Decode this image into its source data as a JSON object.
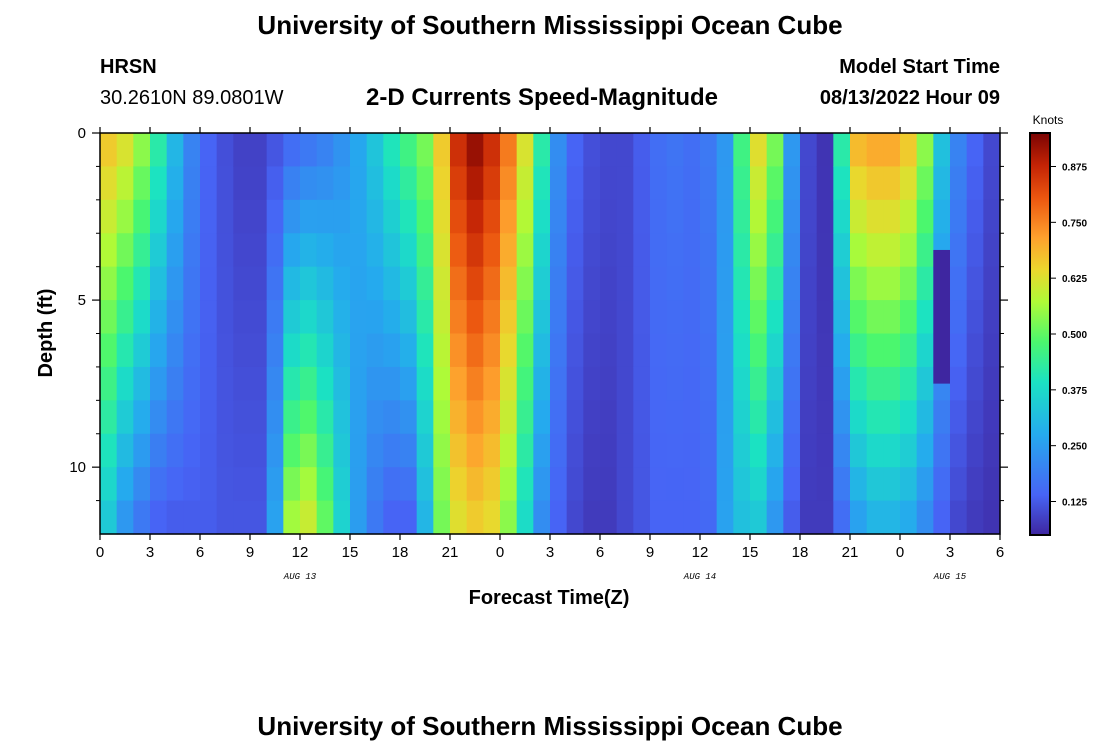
{
  "header": {
    "title": "University of Southern Mississippi Ocean Cube",
    "station": "HRSN",
    "coords": "30.2610N  89.0801W",
    "subtitle": "2-D Currents Speed-Magnitude",
    "model_label": "Model Start Time",
    "model_time": "08/13/2022 Hour 09"
  },
  "footer": {
    "title": "University of Southern Mississippi Ocean Cube"
  },
  "chart_data": {
    "type": "heatmap",
    "title": "2-D Currents Speed-Magnitude",
    "xlabel": "Forecast Time(Z)",
    "ylabel": "Depth (ft)",
    "colorbar_label": "Knots",
    "x_range": [
      0,
      54
    ],
    "y_range": [
      0,
      12
    ],
    "x_ticks": [
      0,
      3,
      6,
      9,
      12,
      15,
      18,
      21,
      24,
      27,
      30,
      33,
      36,
      39,
      42,
      45,
      48,
      51,
      54
    ],
    "x_tick_labels": [
      "0",
      "3",
      "6",
      "9",
      "12",
      "15",
      "18",
      "21",
      "0",
      "3",
      "6",
      "9",
      "12",
      "15",
      "18",
      "21",
      "0",
      "3",
      "6"
    ],
    "y_ticks": [
      0,
      5,
      10
    ],
    "y_tick_labels": [
      "0",
      "5",
      "10"
    ],
    "date_labels": [
      {
        "x": 12,
        "label": "AUG 13"
      },
      {
        "x": 36,
        "label": "AUG 14"
      },
      {
        "x": 51,
        "label": "AUG 15"
      }
    ],
    "colorbar_ticks": [
      0.125,
      0.25,
      0.375,
      0.5,
      0.625,
      0.75,
      0.875
    ],
    "colorbar_tick_labels": [
      "0.125",
      "0.250",
      "0.375",
      "0.500",
      "0.625",
      "0.750",
      "0.875"
    ],
    "vmin": 0.05,
    "vmax": 0.95,
    "depths": [
      0.5,
      1.5,
      2.5,
      3.5,
      4.5,
      5.5,
      6.5,
      7.5,
      8.5,
      9.5,
      10.5,
      11.5
    ],
    "time_step": 1,
    "surface_profile": [
      0.66,
      0.62,
      0.54,
      0.42,
      0.3,
      0.2,
      0.14,
      0.11,
      0.09,
      0.09,
      0.12,
      0.16,
      0.18,
      0.2,
      0.23,
      0.27,
      0.33,
      0.4,
      0.46,
      0.52,
      0.66,
      0.86,
      0.92,
      0.86,
      0.76,
      0.62,
      0.42,
      0.22,
      0.14,
      0.11,
      0.1,
      0.1,
      0.13,
      0.16,
      0.17,
      0.16,
      0.18,
      0.24,
      0.46,
      0.63,
      0.52,
      0.24,
      0.1,
      0.07,
      0.42,
      0.68,
      0.7,
      0.7,
      0.66,
      0.54,
      0.32,
      0.2,
      0.14,
      0.1
    ],
    "deep_profile": [
      0.34,
      0.24,
      0.18,
      0.14,
      0.13,
      0.13,
      0.13,
      0.12,
      0.12,
      0.12,
      0.26,
      0.56,
      0.6,
      0.5,
      0.36,
      0.25,
      0.18,
      0.14,
      0.14,
      0.3,
      0.52,
      0.63,
      0.66,
      0.64,
      0.54,
      0.38,
      0.22,
      0.14,
      0.1,
      0.08,
      0.08,
      0.1,
      0.12,
      0.14,
      0.14,
      0.14,
      0.15,
      0.26,
      0.32,
      0.34,
      0.24,
      0.13,
      0.08,
      0.08,
      0.16,
      0.26,
      0.3,
      0.3,
      0.28,
      0.22,
      0.14,
      0.1,
      0.08,
      0.07
    ],
    "annotations": [
      {
        "type": "dark_patch",
        "x": [
          50,
          51
        ],
        "depth": [
          3.5,
          7.5
        ],
        "value": 0.05
      }
    ]
  }
}
